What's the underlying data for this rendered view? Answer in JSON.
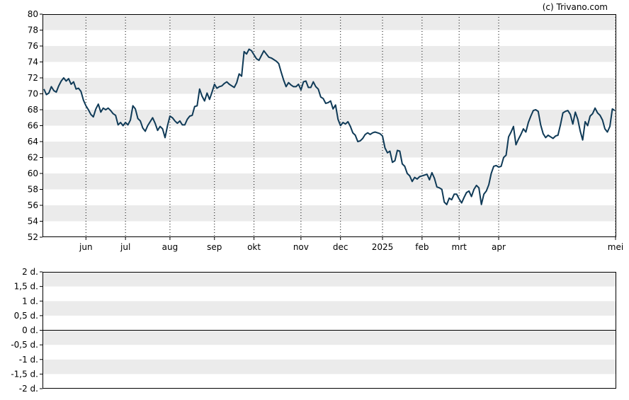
{
  "credit": "(c) Trivano.com",
  "chart_data": [
    {
      "type": "line",
      "title": "",
      "xlabel": "",
      "ylabel": "",
      "ylim": [
        52,
        80
      ],
      "y_ticks": [
        "52",
        "54",
        "56",
        "58",
        "60",
        "62",
        "64",
        "66",
        "68",
        "70",
        "72",
        "74",
        "76",
        "78",
        "80"
      ],
      "x_ticks": [
        "jun",
        "jul",
        "aug",
        "sep",
        "okt",
        "nov",
        "dec",
        "2025",
        "feb",
        "mrt",
        "apr",
        "mei"
      ],
      "grid": "alternating horizontal bands, dotted vertical lines at month ticks",
      "line_color": "#0f3a57",
      "series": [
        {
          "x_unit": "trading day index (month ticks at days 17,33,51,69,85,104,120,137,153,168,184,200)",
          "values": [
            70.6,
            69.9,
            70.1,
            70.9,
            70.4,
            70.2,
            71.0,
            71.6,
            72.0,
            71.6,
            71.9,
            71.2,
            71.5,
            70.6,
            70.7,
            70.3,
            69.2,
            68.5,
            68.0,
            67.4,
            67.1,
            68.1,
            68.7,
            67.7,
            68.2,
            68.0,
            68.2,
            67.9,
            67.5,
            67.3,
            66.1,
            66.4,
            66.0,
            66.4,
            66.1,
            66.7,
            68.5,
            68.1,
            66.9,
            66.6,
            65.7,
            65.3,
            66.0,
            66.5,
            67.0,
            66.3,
            65.4,
            65.9,
            65.6,
            64.5,
            66.0,
            67.2,
            67.0,
            66.6,
            66.3,
            66.6,
            66.1,
            66.1,
            66.8,
            67.2,
            67.3,
            68.4,
            68.5,
            70.6,
            69.7,
            69.1,
            70.1,
            69.3,
            70.2,
            71.2,
            70.7,
            70.9,
            71.0,
            71.3,
            71.5,
            71.2,
            71.0,
            70.8,
            71.4,
            72.5,
            72.2,
            75.3,
            75.0,
            75.6,
            75.4,
            74.9,
            74.4,
            74.2,
            74.8,
            75.4,
            75.0,
            74.6,
            74.5,
            74.3,
            74.1,
            73.8,
            72.7,
            71.7,
            70.9,
            71.4,
            71.1,
            70.9,
            70.9,
            71.2,
            70.5,
            71.5,
            71.6,
            70.8,
            70.8,
            71.5,
            70.9,
            70.6,
            69.6,
            69.4,
            68.8,
            68.9,
            69.1,
            68.1,
            68.6,
            66.8,
            66.0,
            66.4,
            66.2,
            66.5,
            65.9,
            65.1,
            64.8,
            64.0,
            64.1,
            64.4,
            64.9,
            65.1,
            64.9,
            65.1,
            65.2,
            65.1,
            65.0,
            64.7,
            63.2,
            62.6,
            62.8,
            61.4,
            61.6,
            62.9,
            62.8,
            61.2,
            60.9,
            60.0,
            59.7,
            59.0,
            59.5,
            59.3,
            59.6,
            59.7,
            59.8,
            59.9,
            59.2,
            60.1,
            59.4,
            58.3,
            58.2,
            58.0,
            56.4,
            56.1,
            56.9,
            56.7,
            57.4,
            57.4,
            56.8,
            56.3,
            57.0,
            57.6,
            57.8,
            57.1,
            58.0,
            58.5,
            58.2,
            56.1,
            57.4,
            57.8,
            58.6,
            60.0,
            60.9,
            61.0,
            60.8,
            60.9,
            62.0,
            62.3,
            64.6,
            65.2,
            65.9,
            63.6,
            64.3,
            64.9,
            65.6,
            65.2,
            66.4,
            67.2,
            67.9,
            68.0,
            67.8,
            66.1,
            65.0,
            64.5,
            64.8,
            64.6,
            64.4,
            64.7,
            64.8,
            66.1,
            67.6,
            67.8,
            67.9,
            67.4,
            66.2,
            67.7,
            66.8,
            65.3,
            64.2,
            66.5,
            66.0,
            67.2,
            67.5,
            68.2,
            67.6,
            67.3,
            66.7,
            65.6,
            65.2,
            65.9,
            68.1,
            67.9
          ]
        }
      ]
    },
    {
      "type": "line",
      "title": "",
      "ylim": [
        -2,
        2
      ],
      "y_ticks": [
        "2 d.",
        "1,5 d.",
        "1 d.",
        "0,5 d.",
        "0 d.",
        "-0,5 d.",
        "-1 d.",
        "-1,5 d.",
        "-2 d."
      ],
      "zero_line": 0,
      "series": []
    }
  ]
}
